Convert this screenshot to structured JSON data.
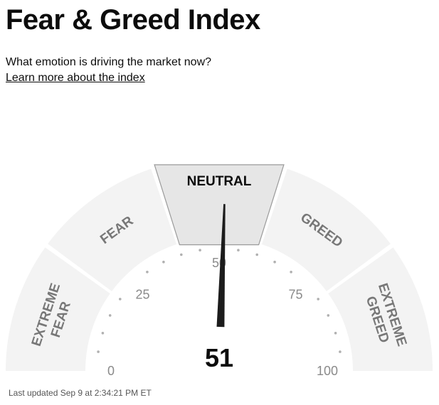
{
  "header": {
    "title": "Fear & Greed Index",
    "subtitle": "What emotion is driving the market now?",
    "learn_more_link": "Learn more about the index"
  },
  "gauge": {
    "score": "51",
    "score_value": 51,
    "scale_min": 0,
    "scale_max": 100,
    "tick_labels": [
      "0",
      "25",
      "50",
      "75",
      "100"
    ],
    "segments": [
      {
        "label_lines": [
          "EXTREME",
          "FEAR"
        ],
        "active": false
      },
      {
        "label_lines": [
          "FEAR"
        ],
        "active": false
      },
      {
        "label_lines": [
          "NEUTRAL"
        ],
        "active": true
      },
      {
        "label_lines": [
          "GREED"
        ],
        "active": false
      },
      {
        "label_lines": [
          "EXTREME",
          "GREED"
        ],
        "active": false
      }
    ],
    "colors": {
      "segment_fill": "#f3f3f3",
      "active_segment_fill": "#e6e6e6",
      "needle": "#1c1c1c",
      "dots": "#b0b0b0"
    }
  },
  "footer": {
    "last_updated": "Last updated Sep 9 at 2:34:21 PM ET"
  }
}
